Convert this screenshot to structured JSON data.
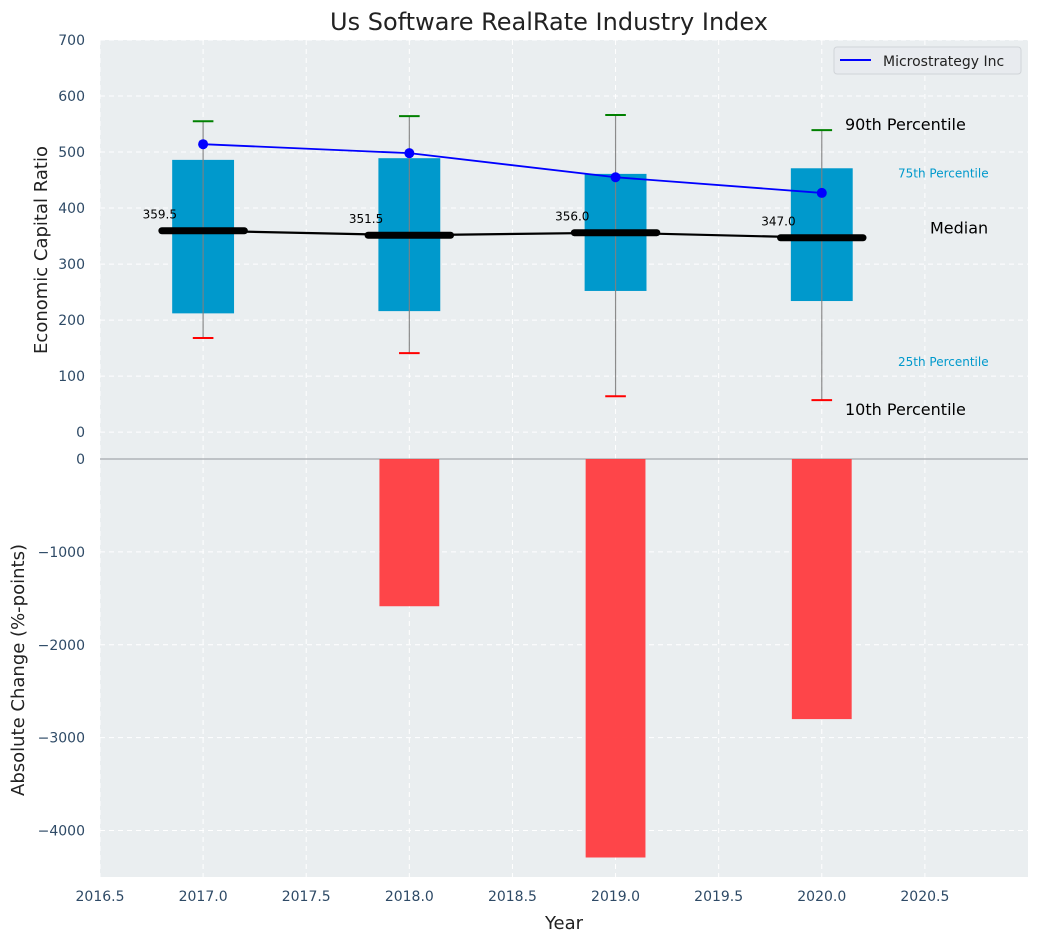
{
  "chart_data": [
    {
      "panel": "top",
      "type": "box-percentile",
      "title": "Us Software RealRate Industry Index",
      "xlabel": "",
      "ylabel": "Economic Capital Ratio",
      "x": [
        2017,
        2018,
        2019,
        2020
      ],
      "xlim": [
        2016.5,
        2021.0
      ],
      "ylim": [
        -48,
        700
      ],
      "yticks": [
        0,
        100,
        200,
        300,
        400,
        500,
        600,
        700
      ],
      "grid": true,
      "percentiles": {
        "p10": [
          168,
          141,
          64,
          57
        ],
        "p25": [
          212,
          216,
          252,
          234
        ],
        "median": [
          359.5,
          351.5,
          356.0,
          347.0
        ],
        "p75": [
          486,
          489,
          461,
          471
        ],
        "p90": [
          555,
          564,
          566,
          539
        ]
      },
      "median_labels": [
        "359.5",
        "351.5",
        "356.0",
        "347.0"
      ],
      "series": [
        {
          "name": "Microstrategy Inc",
          "values": [
            514,
            498,
            455,
            427
          ],
          "color": "#0000ff"
        }
      ],
      "legend": {
        "position": "top-right",
        "entries": [
          "Microstrategy Inc"
        ]
      },
      "annotations": {
        "p90": "90th Percentile",
        "p75": "75th Percentile",
        "median": "Median",
        "p25": "25th Percentile",
        "p10": "10th Percentile"
      },
      "colors": {
        "box": "#0099cc",
        "p90_cap": "#008000",
        "p10_cap": "#ff0000",
        "median": "#000000",
        "whisker": "#808080",
        "percentile_text": "#0099cc"
      }
    },
    {
      "panel": "bottom",
      "type": "bar",
      "title": "",
      "xlabel": "Year",
      "ylabel": "Absolute Change (%-points)",
      "x": [
        2017,
        2018,
        2019,
        2020
      ],
      "values": [
        0,
        -1585,
        -4290,
        -2800
      ],
      "xlim": [
        2016.5,
        2021.0
      ],
      "ylim": [
        -4500,
        0
      ],
      "yticks": [
        0,
        -1000,
        -2000,
        -3000,
        -4000
      ],
      "ytick_labels": [
        "0",
        "−1000",
        "−2000",
        "−3000",
        "−4000"
      ],
      "xticks": [
        2016.5,
        2017.0,
        2017.5,
        2018.0,
        2018.5,
        2019.0,
        2019.5,
        2020.0,
        2020.5
      ],
      "xtick_labels": [
        "2016.5",
        "2017.0",
        "2017.5",
        "2018.0",
        "2018.5",
        "2019.0",
        "2019.5",
        "2020.0",
        "2020.5"
      ],
      "grid": true,
      "colors": {
        "bar": "#ff3b3f"
      }
    }
  ]
}
